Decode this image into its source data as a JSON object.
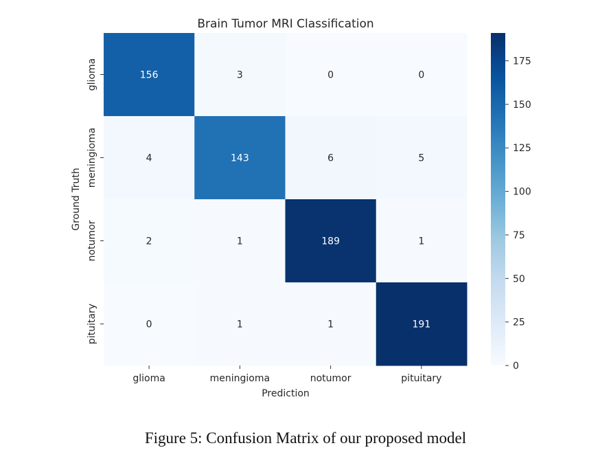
{
  "chart_data": {
    "type": "heatmap",
    "title": "Brain Tumor MRI Classification",
    "xlabel": "Prediction",
    "ylabel": "Ground Truth",
    "x_categories": [
      "glioma",
      "meningioma",
      "notumor",
      "pituitary"
    ],
    "y_categories": [
      "glioma",
      "meningioma",
      "notumor",
      "pituitary"
    ],
    "values": [
      [
        156,
        3,
        0,
        0
      ],
      [
        4,
        143,
        6,
        5
      ],
      [
        2,
        1,
        189,
        1
      ],
      [
        0,
        1,
        1,
        191
      ]
    ],
    "colormap": "Blues",
    "colorbar": {
      "min": 0,
      "max": 191,
      "ticks": [
        0,
        25,
        50,
        75,
        100,
        125,
        150,
        175
      ]
    }
  },
  "caption": "Figure 5: Confusion Matrix of our proposed model"
}
